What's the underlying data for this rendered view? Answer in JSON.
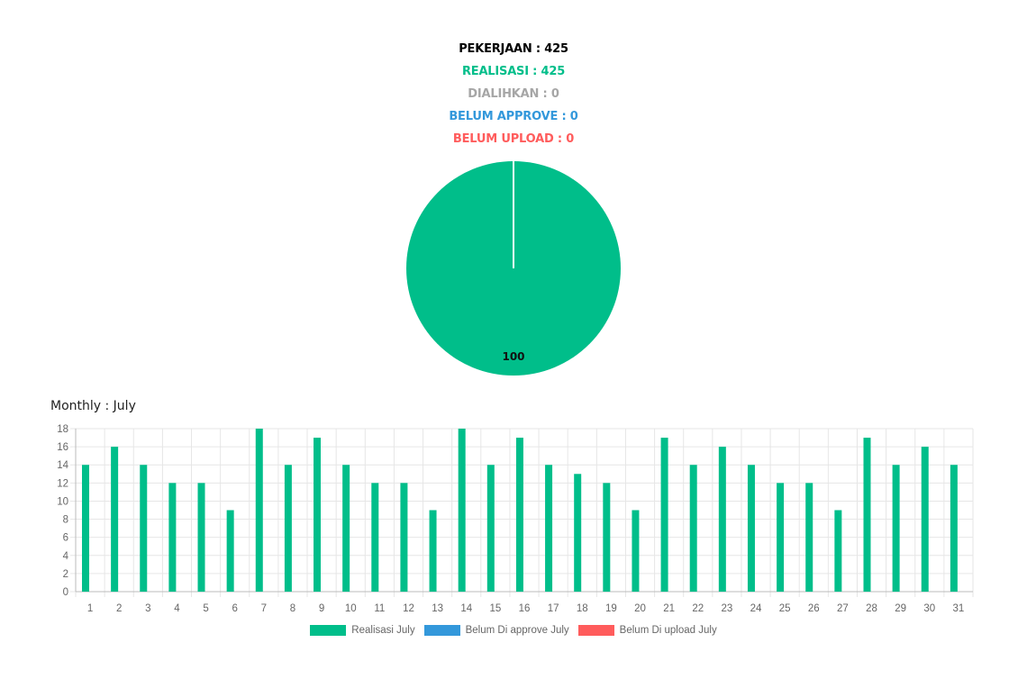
{
  "summary": {
    "pekerjaan": "PEKERJAAN : 425",
    "realisasi": "REALISASI : 425",
    "dialihkan": "DIALIHKAN : 0",
    "belum_approve": "BELUM APPROVE : 0",
    "belum_upload": "BELUM UPLOAD : 0"
  },
  "colors": {
    "pekerjaan": "#000000",
    "realisasi": "#00be8a",
    "dialihkan": "#a6a6a6",
    "belum_approve": "#3398db",
    "belum_upload": "#ff5c5c",
    "grid": "#e6e6e6",
    "axis_text": "#666666"
  },
  "monthly_title": "Monthly : July",
  "legend": [
    {
      "label": "Realisasi July",
      "color": "#00be8a"
    },
    {
      "label": "Belum Di approve July",
      "color": "#3398db"
    },
    {
      "label": "Belum Di upload July",
      "color": "#ff5c5c"
    }
  ],
  "chart_data": [
    {
      "type": "pie",
      "slices": [
        {
          "value": 100,
          "color": "#00be8a",
          "label": "100"
        }
      ]
    },
    {
      "type": "bar",
      "categories": [
        "1",
        "2",
        "3",
        "4",
        "5",
        "6",
        "7",
        "8",
        "9",
        "10",
        "11",
        "12",
        "13",
        "14",
        "15",
        "16",
        "17",
        "18",
        "19",
        "20",
        "21",
        "22",
        "23",
        "24",
        "25",
        "26",
        "27",
        "28",
        "29",
        "30",
        "31"
      ],
      "series": [
        {
          "name": "Realisasi July",
          "color": "#00be8a",
          "values": [
            14,
            16,
            14,
            12,
            12,
            9,
            18,
            14,
            17,
            14,
            12,
            12,
            9,
            18,
            14,
            17,
            14,
            13,
            12,
            9,
            17,
            14,
            16,
            14,
            12,
            12,
            9,
            17,
            14,
            16,
            14
          ]
        },
        {
          "name": "Belum Di approve July",
          "color": "#3398db",
          "values": [
            0,
            0,
            0,
            0,
            0,
            0,
            0,
            0,
            0,
            0,
            0,
            0,
            0,
            0,
            0,
            0,
            0,
            0,
            0,
            0,
            0,
            0,
            0,
            0,
            0,
            0,
            0,
            0,
            0,
            0,
            0
          ]
        },
        {
          "name": "Belum Di upload July",
          "color": "#ff5c5c",
          "values": [
            0,
            0,
            0,
            0,
            0,
            0,
            0,
            0,
            0,
            0,
            0,
            0,
            0,
            0,
            0,
            0,
            0,
            0,
            0,
            0,
            0,
            0,
            0,
            0,
            0,
            0,
            0,
            0,
            0,
            0,
            0
          ]
        }
      ],
      "ylim": [
        0,
        18
      ],
      "yticks": [
        "0",
        "2",
        "4",
        "6",
        "8",
        "10",
        "12",
        "14",
        "16",
        "18"
      ],
      "grid": true,
      "legend_position": "bottom"
    }
  ]
}
